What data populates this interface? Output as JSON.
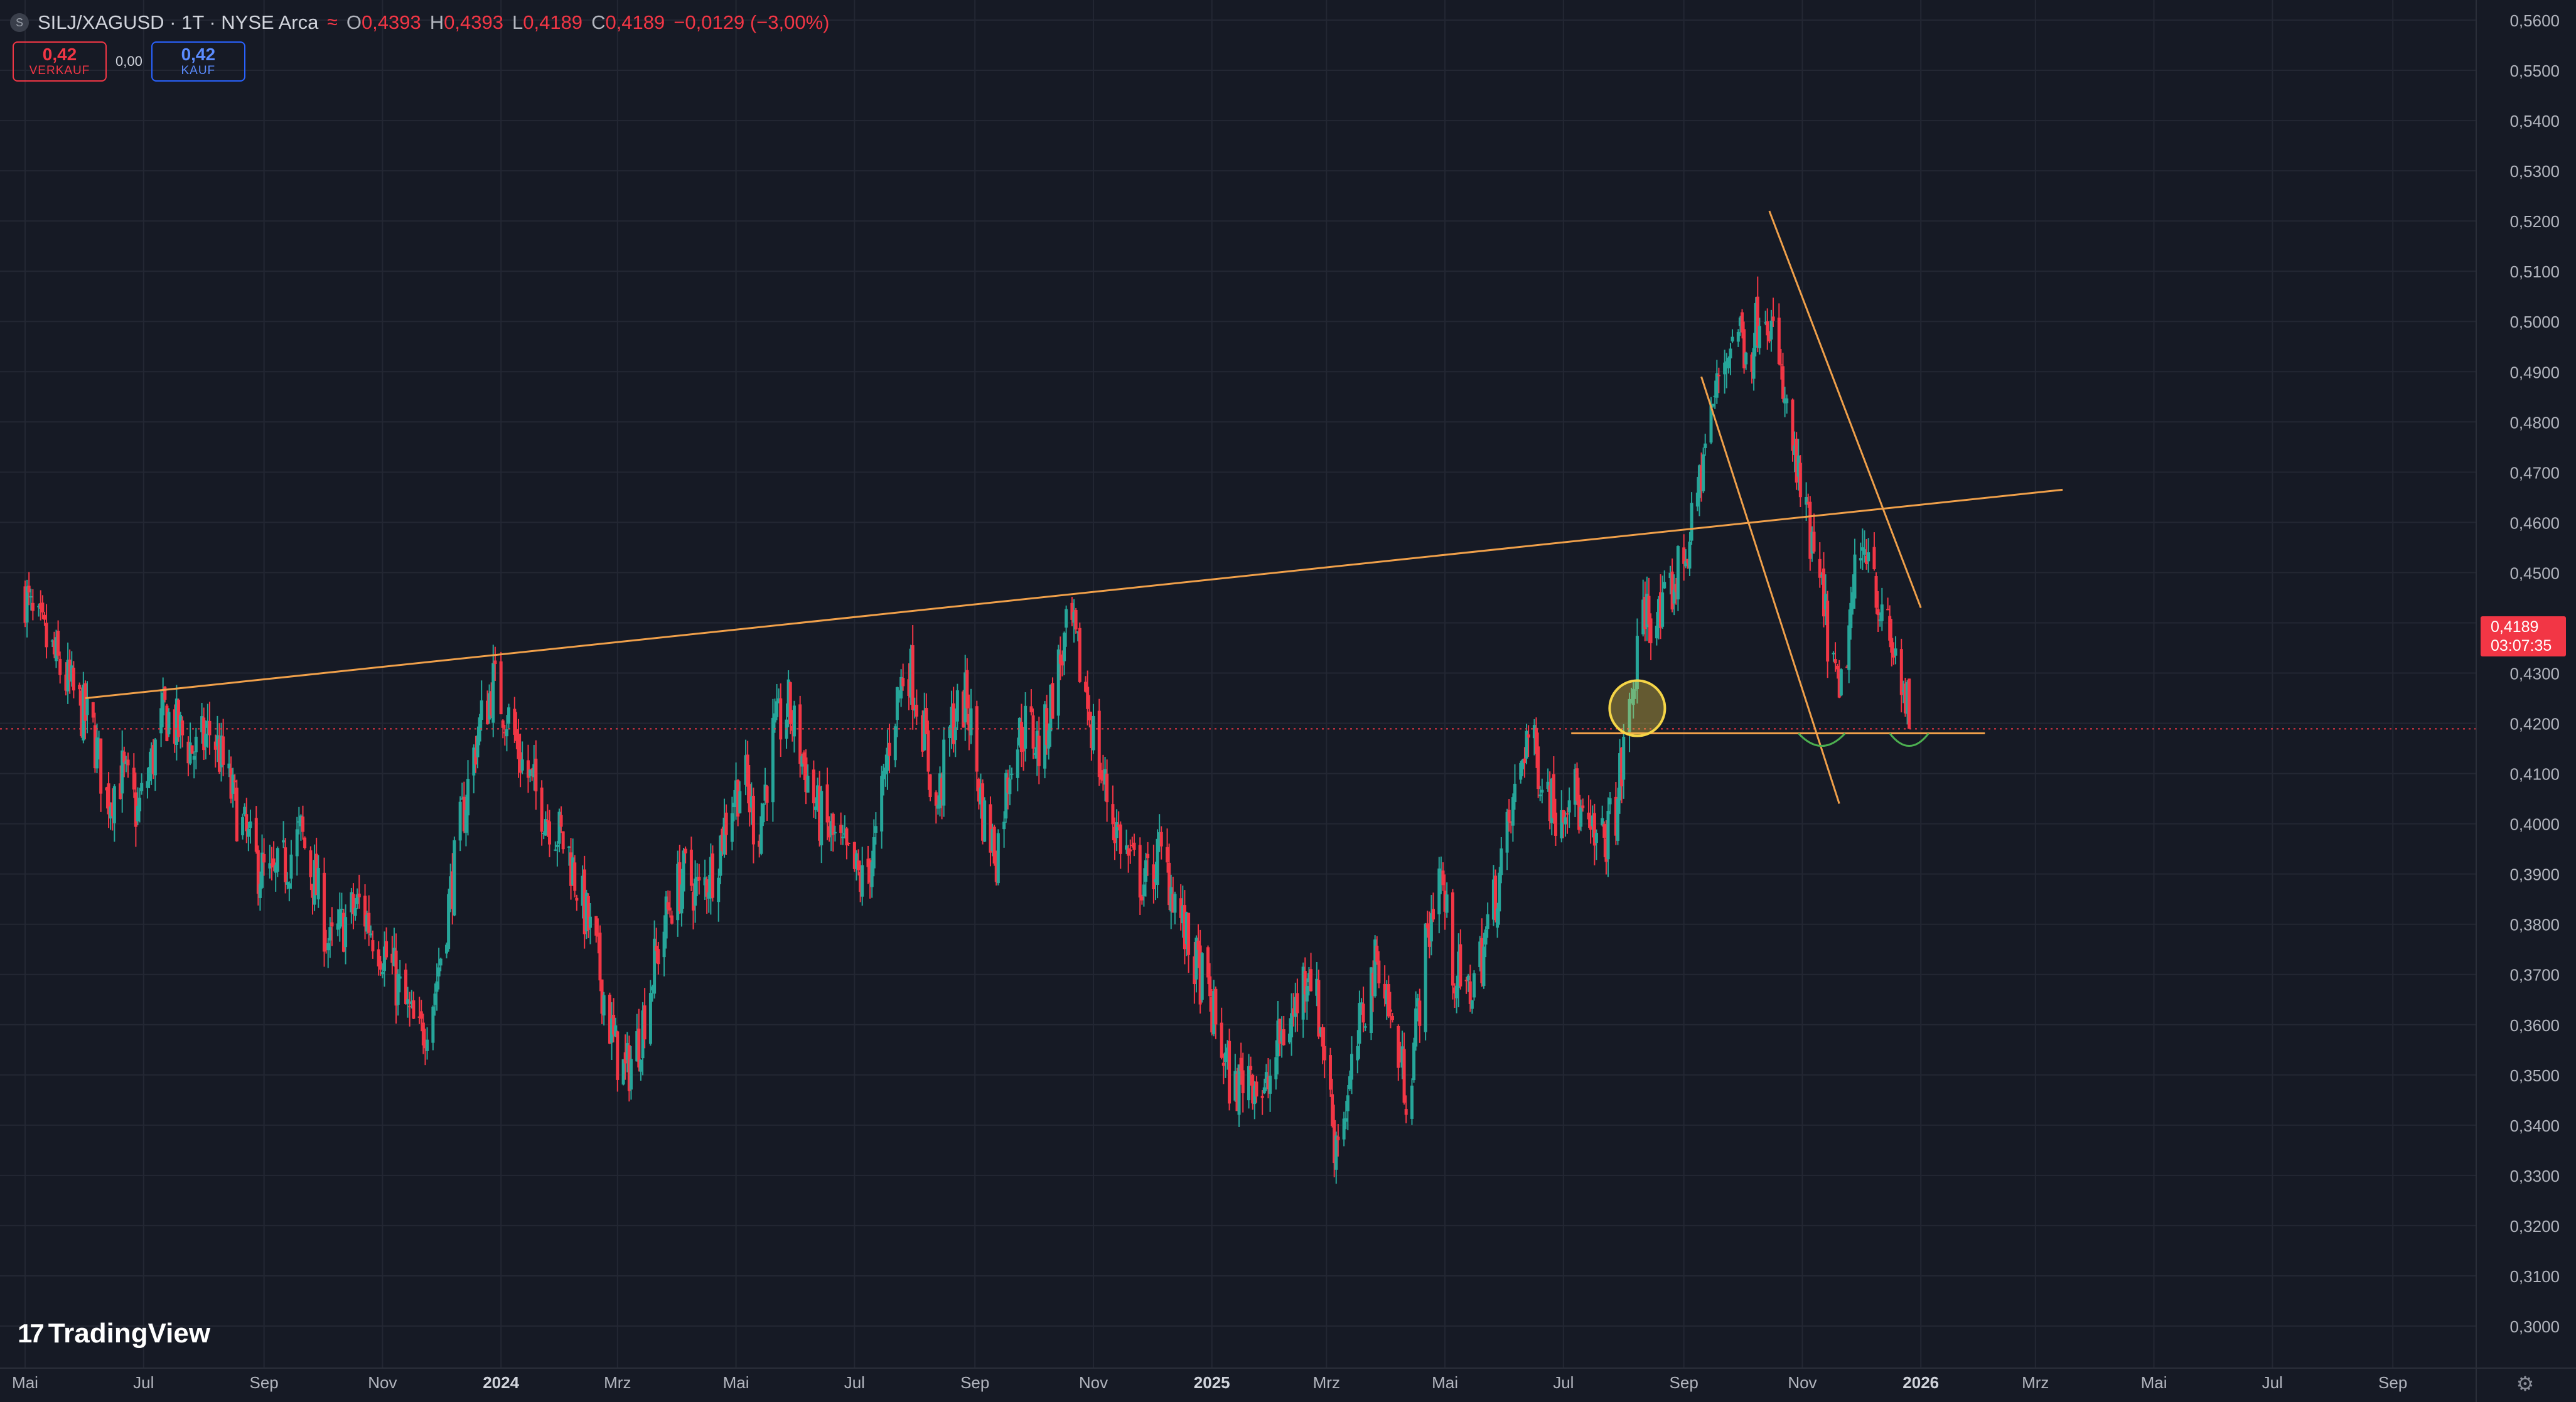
{
  "header": {
    "symbol_badge": "S",
    "title": "SILJ/XAGUSD · 1T · NYSE Arca",
    "indicator_icon": "wave-icon",
    "ohlc": {
      "o_label": "O",
      "o": "0,4393",
      "h_label": "H",
      "h": "0,4393",
      "l_label": "L",
      "l": "0,4189",
      "c_label": "C",
      "c": "0,4189",
      "change": "−0,0129 (−3,00%)"
    }
  },
  "trade": {
    "sell_price": "0,42",
    "sell_label": "VERKAUF",
    "spread": "0,00",
    "buy_price": "0,42",
    "buy_label": "KAUF"
  },
  "logo": {
    "mark": "17",
    "text": "TradingView"
  },
  "price_tag": {
    "value": "0,4189",
    "countdown": "03:07:35"
  },
  "colors": {
    "background": "#161a25",
    "grid": "#232733",
    "up": "#26a69a",
    "down": "#f23645",
    "trendline": "#f0a04a",
    "marker": "#f5d547",
    "arc": "#4caf50",
    "axis_text": "#b2b5be"
  },
  "chart_data": {
    "type": "candlestick",
    "ylim": [
      0.3,
      0.56
    ],
    "y_ticks": [
      "0,5600",
      "0,5500",
      "0,5400",
      "0,5300",
      "0,5200",
      "0,5100",
      "0,5000",
      "0,4900",
      "0,4800",
      "0,4700",
      "0,4600",
      "0,4500",
      "0,4400",
      "0,4300",
      "0,4200",
      "0,4100",
      "0,4000",
      "0,3900",
      "0,3800",
      "0,3700",
      "0,3600",
      "0,3500",
      "0,3400",
      "0,3300",
      "0,3200",
      "0,3100",
      "0,3000"
    ],
    "y_tick_values": [
      0.56,
      0.55,
      0.54,
      0.53,
      0.52,
      0.51,
      0.5,
      0.49,
      0.48,
      0.47,
      0.46,
      0.45,
      0.44,
      0.43,
      0.42,
      0.41,
      0.4,
      0.39,
      0.38,
      0.37,
      0.36,
      0.35,
      0.34,
      0.33,
      0.32,
      0.31,
      0.3
    ],
    "x_range": [
      "2023-05-01",
      "2026-10-01"
    ],
    "x_ticks": [
      {
        "label": "Mai",
        "date": "2023-05-01",
        "bold": false
      },
      {
        "label": "Jul",
        "date": "2023-07-01",
        "bold": false
      },
      {
        "label": "Sep",
        "date": "2023-09-01",
        "bold": false
      },
      {
        "label": "Nov",
        "date": "2023-11-01",
        "bold": false
      },
      {
        "label": "2024",
        "date": "2024-01-01",
        "bold": true
      },
      {
        "label": "Mrz",
        "date": "2024-03-01",
        "bold": false
      },
      {
        "label": "Mai",
        "date": "2024-05-01",
        "bold": false
      },
      {
        "label": "Jul",
        "date": "2024-07-01",
        "bold": false
      },
      {
        "label": "Sep",
        "date": "2024-09-01",
        "bold": false
      },
      {
        "label": "Nov",
        "date": "2024-11-01",
        "bold": false
      },
      {
        "label": "2025",
        "date": "2025-01-01",
        "bold": true
      },
      {
        "label": "Mrz",
        "date": "2025-03-01",
        "bold": false
      },
      {
        "label": "Mai",
        "date": "2025-05-01",
        "bold": false
      },
      {
        "label": "Jul",
        "date": "2025-07-01",
        "bold": false
      },
      {
        "label": "Sep",
        "date": "2025-09-01",
        "bold": false
      },
      {
        "label": "Nov",
        "date": "2025-11-01",
        "bold": false
      },
      {
        "label": "2026",
        "date": "2026-01-01",
        "bold": true
      },
      {
        "label": "Mrz",
        "date": "2026-03-01",
        "bold": false
      },
      {
        "label": "Mai",
        "date": "2026-05-01",
        "bold": false
      },
      {
        "label": "Jul",
        "date": "2026-07-01",
        "bold": false
      },
      {
        "label": "Sep",
        "date": "2026-09-01",
        "bold": false
      }
    ],
    "last_price": 0.4189,
    "price_path": [
      [
        "2023-05-01",
        0.446
      ],
      [
        "2023-05-05",
        0.44
      ],
      [
        "2023-05-12",
        0.436
      ],
      [
        "2023-05-20",
        0.43
      ],
      [
        "2023-05-28",
        0.424
      ],
      [
        "2023-06-05",
        0.418
      ],
      [
        "2023-06-12",
        0.405
      ],
      [
        "2023-06-20",
        0.41
      ],
      [
        "2023-06-28",
        0.402
      ],
      [
        "2023-07-05",
        0.412
      ],
      [
        "2023-07-12",
        0.422
      ],
      [
        "2023-07-20",
        0.418
      ],
      [
        "2023-07-28",
        0.414
      ],
      [
        "2023-08-05",
        0.419
      ],
      [
        "2023-08-12",
        0.41
      ],
      [
        "2023-08-20",
        0.4
      ],
      [
        "2023-08-28",
        0.392
      ],
      [
        "2023-09-05",
        0.388
      ],
      [
        "2023-09-12",
        0.392
      ],
      [
        "2023-09-20",
        0.398
      ],
      [
        "2023-09-28",
        0.387
      ],
      [
        "2023-10-05",
        0.375
      ],
      [
        "2023-10-12",
        0.38
      ],
      [
        "2023-10-20",
        0.384
      ],
      [
        "2023-10-28",
        0.378
      ],
      [
        "2023-11-05",
        0.372
      ],
      [
        "2023-11-12",
        0.364
      ],
      [
        "2023-11-20",
        0.357
      ],
      [
        "2023-11-28",
        0.367
      ],
      [
        "2023-12-05",
        0.384
      ],
      [
        "2023-12-12",
        0.401
      ],
      [
        "2023-12-20",
        0.418
      ],
      [
        "2023-12-28",
        0.428
      ],
      [
        "2024-01-05",
        0.421
      ],
      [
        "2024-01-12",
        0.412
      ],
      [
        "2024-01-20",
        0.405
      ],
      [
        "2024-01-28",
        0.4
      ],
      [
        "2024-02-05",
        0.394
      ],
      [
        "2024-02-12",
        0.384
      ],
      [
        "2024-02-20",
        0.372
      ],
      [
        "2024-02-28",
        0.356
      ],
      [
        "2024-03-05",
        0.35
      ],
      [
        "2024-03-12",
        0.357
      ],
      [
        "2024-03-20",
        0.372
      ],
      [
        "2024-03-28",
        0.384
      ],
      [
        "2024-04-05",
        0.39
      ],
      [
        "2024-04-12",
        0.386
      ],
      [
        "2024-04-20",
        0.392
      ],
      [
        "2024-04-28",
        0.404
      ],
      [
        "2024-05-05",
        0.41
      ],
      [
        "2024-05-12",
        0.397
      ],
      [
        "2024-05-20",
        0.417
      ],
      [
        "2024-05-28",
        0.423
      ],
      [
        "2024-06-05",
        0.412
      ],
      [
        "2024-06-12",
        0.402
      ],
      [
        "2024-06-20",
        0.397
      ],
      [
        "2024-06-28",
        0.392
      ],
      [
        "2024-07-05",
        0.388
      ],
      [
        "2024-07-12",
        0.396
      ],
      [
        "2024-07-20",
        0.42
      ],
      [
        "2024-07-28",
        0.433
      ],
      [
        "2024-08-05",
        0.42
      ],
      [
        "2024-08-12",
        0.402
      ],
      [
        "2024-08-20",
        0.42
      ],
      [
        "2024-08-28",
        0.425
      ],
      [
        "2024-09-05",
        0.402
      ],
      [
        "2024-09-12",
        0.394
      ],
      [
        "2024-09-20",
        0.415
      ],
      [
        "2024-09-28",
        0.42
      ],
      [
        "2024-10-05",
        0.414
      ],
      [
        "2024-10-12",
        0.428
      ],
      [
        "2024-10-20",
        0.44
      ],
      [
        "2024-10-28",
        0.426
      ],
      [
        "2024-11-05",
        0.41
      ],
      [
        "2024-11-12",
        0.4
      ],
      [
        "2024-11-20",
        0.392
      ],
      [
        "2024-11-28",
        0.388
      ],
      [
        "2024-12-05",
        0.394
      ],
      [
        "2024-12-12",
        0.387
      ],
      [
        "2024-12-20",
        0.375
      ],
      [
        "2024-12-28",
        0.368
      ],
      [
        "2025-01-05",
        0.357
      ],
      [
        "2025-01-12",
        0.346
      ],
      [
        "2025-01-20",
        0.352
      ],
      [
        "2025-01-28",
        0.345
      ],
      [
        "2025-02-05",
        0.357
      ],
      [
        "2025-02-12",
        0.362
      ],
      [
        "2025-02-20",
        0.373
      ],
      [
        "2025-02-28",
        0.355
      ],
      [
        "2025-03-05",
        0.337
      ],
      [
        "2025-03-12",
        0.345
      ],
      [
        "2025-03-20",
        0.363
      ],
      [
        "2025-03-28",
        0.374
      ],
      [
        "2025-04-05",
        0.357
      ],
      [
        "2025-04-12",
        0.346
      ],
      [
        "2025-04-20",
        0.372
      ],
      [
        "2025-04-28",
        0.392
      ],
      [
        "2025-05-05",
        0.372
      ],
      [
        "2025-05-12",
        0.365
      ],
      [
        "2025-05-20",
        0.374
      ],
      [
        "2025-05-28",
        0.388
      ],
      [
        "2025-06-05",
        0.403
      ],
      [
        "2025-06-12",
        0.418
      ],
      [
        "2025-06-20",
        0.41
      ],
      [
        "2025-06-28",
        0.402
      ],
      [
        "2025-07-05",
        0.409
      ],
      [
        "2025-07-12",
        0.398
      ],
      [
        "2025-07-20",
        0.395
      ],
      [
        "2025-07-28",
        0.403
      ],
      [
        "2025-08-05",
        0.425
      ],
      [
        "2025-08-12",
        0.443
      ],
      [
        "2025-08-20",
        0.44
      ],
      [
        "2025-08-28",
        0.449
      ],
      [
        "2025-09-05",
        0.458
      ],
      [
        "2025-09-12",
        0.476
      ],
      [
        "2025-09-20",
        0.49
      ],
      [
        "2025-09-28",
        0.5
      ],
      [
        "2025-10-05",
        0.493
      ],
      [
        "2025-10-12",
        0.507
      ],
      [
        "2025-10-20",
        0.49
      ],
      [
        "2025-10-28",
        0.472
      ],
      [
        "2025-11-05",
        0.456
      ],
      [
        "2025-11-12",
        0.443
      ],
      [
        "2025-11-20",
        0.423
      ],
      [
        "2025-11-28",
        0.448
      ],
      [
        "2025-12-05",
        0.458
      ],
      [
        "2025-12-12",
        0.44
      ],
      [
        "2025-12-20",
        0.432
      ],
      [
        "2025-12-27",
        0.4189
      ]
    ],
    "drawings": {
      "upper_trendline": {
        "from": [
          "2023-06-01",
          0.425
        ],
        "to": [
          "2026-03-15",
          0.4665
        ]
      },
      "support_line": {
        "from": [
          "2025-07-05",
          0.418
        ],
        "to": [
          "2026-02-03",
          0.418
        ]
      },
      "channel_upper": {
        "from": [
          "2025-10-15",
          0.522
        ],
        "to": [
          "2026-01-01",
          0.443
        ]
      },
      "channel_lower": {
        "from": [
          "2025-09-10",
          0.489
        ],
        "to": [
          "2025-11-20",
          0.404
        ]
      },
      "marker_circle": {
        "center": [
          "2025-08-08",
          0.423
        ],
        "radius_value": 0.0055
      },
      "support_arcs": [
        {
          "center": [
            "2025-11-11",
            0.418
          ],
          "half_width_days": 12,
          "depth": 0.0025
        },
        {
          "center": [
            "2025-12-26",
            0.418
          ],
          "half_width_days": 10,
          "depth": 0.0025
        }
      ]
    }
  }
}
